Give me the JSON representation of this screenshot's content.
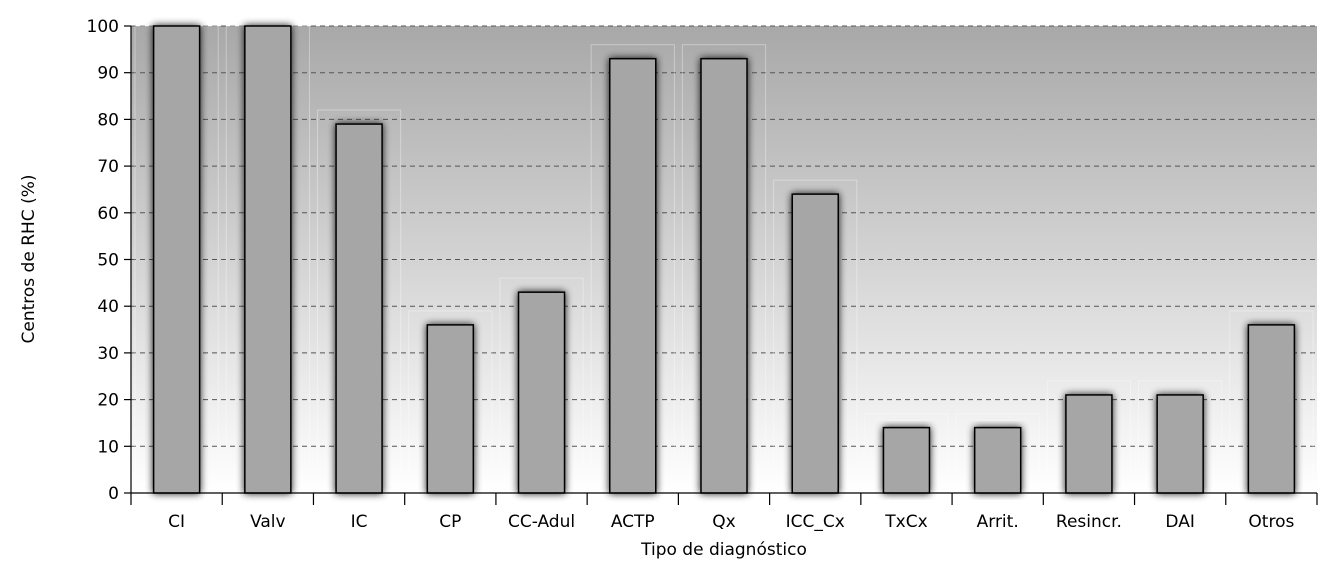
{
  "chart_data": {
    "type": "bar",
    "title": "",
    "xlabel": "Tipo de diagnóstico",
    "ylabel": "Centros de RHC (%)",
    "ylim": [
      0,
      100
    ],
    "yticks": [
      0,
      10,
      20,
      30,
      40,
      50,
      60,
      70,
      80,
      90,
      100
    ],
    "grid": "horizontal dashed",
    "categories": [
      "CI",
      "Valv",
      "IC",
      "CP",
      "CC-Adul",
      "ACTP",
      "Qx",
      "ICC_Cx",
      "TxCx",
      "Arrit.",
      "Resincr.",
      "DAI",
      "Otros"
    ],
    "values": [
      100,
      100,
      79,
      36,
      43,
      93,
      93,
      64,
      14,
      14,
      21,
      21,
      36
    ],
    "colors": {
      "bar_fill": "#a6a6a6",
      "bar_stroke": "#000000",
      "plot_bg_top": "#a8a8a8",
      "plot_bg_bottom": "#ffffff",
      "grid": "#555555"
    }
  }
}
